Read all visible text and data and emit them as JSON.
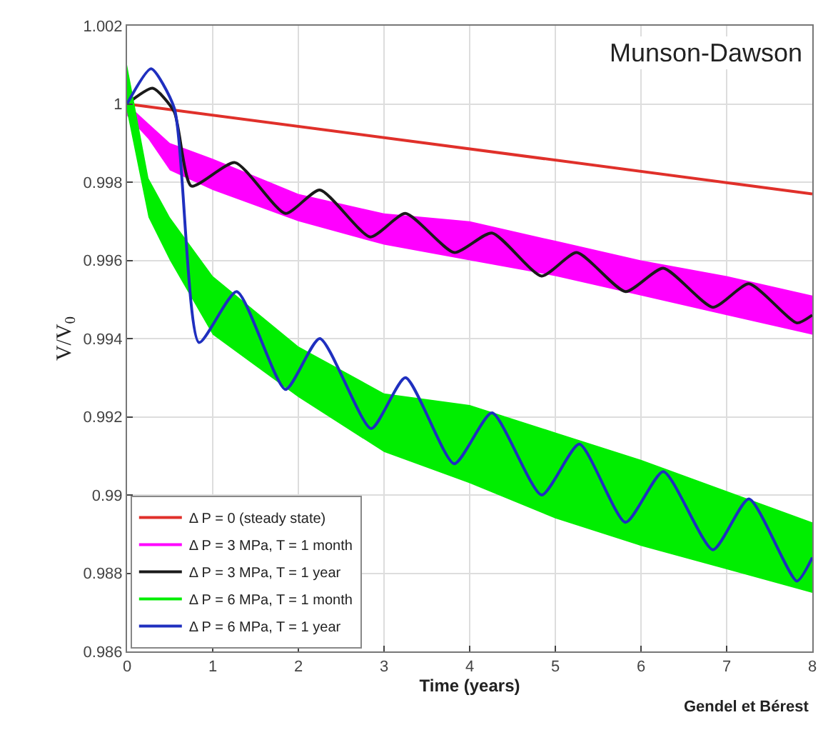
{
  "chart_data": {
    "type": "line",
    "xlabel": "Time (years)",
    "ylabel": "V/V$_{0}$",
    "xlim": [
      0,
      8
    ],
    "xticks": [
      0,
      1,
      2,
      3,
      4,
      5,
      6,
      7,
      8
    ],
    "ylim": [
      0.986,
      1.002
    ],
    "yticks": [
      0.986,
      0.988,
      0.99,
      0.992,
      0.994,
      0.996,
      0.998,
      1,
      1.002
    ],
    "grid": true,
    "legend": "bottom left",
    "marker": "none",
    "line_style": "solid",
    "annotations": [
      "Munson-Dawson",
      "Gendel et Bérest"
    ],
    "series": [
      {
        "name": "Δ P = 0 (steady state)",
        "color": "#e0302a",
        "x": [
          0,
          8
        ],
        "values": [
          1.0,
          0.9977
        ]
      },
      {
        "name": "Δ P = 3 MPa, T = 1 month",
        "color": "#ff00ff",
        "x": [
          0,
          0.25,
          0.5,
          1,
          2,
          3,
          4,
          5,
          6,
          7,
          8
        ],
        "values": [
          null,
          null,
          null,
          null,
          null,
          null,
          null,
          null,
          null,
          null,
          null
        ],
        "upper": [
          1.0,
          0.9995,
          0.999,
          0.9986,
          0.9977,
          0.9972,
          0.997,
          0.9965,
          0.996,
          0.9956,
          0.9951
        ],
        "lower": [
          0.9997,
          0.9991,
          0.9983,
          0.9978,
          0.997,
          0.9964,
          0.996,
          0.9956,
          0.9951,
          0.9946,
          0.9941
        ]
      },
      {
        "name": "Δ P = 3 MPa, T = 1 year",
        "color": "#1a1a1a",
        "x": [
          0,
          0.3,
          0.55,
          0.75,
          1.26,
          1.85,
          2.25,
          2.84,
          3.25,
          3.82,
          4.26,
          4.84,
          5.25,
          5.82,
          6.26,
          6.84,
          7.26,
          7.82,
          8
        ],
        "values": [
          1.0,
          1.0004,
          0.9998,
          0.9979,
          0.9985,
          0.9972,
          0.9978,
          0.9966,
          0.9972,
          0.9962,
          0.9967,
          0.9956,
          0.9962,
          0.9952,
          0.9958,
          0.9948,
          0.9954,
          0.9944,
          0.9946
        ]
      },
      {
        "name": "Δ P = 6 MPa, T = 1 month",
        "color": "#00ee00",
        "x": [
          0,
          0.25,
          0.5,
          1,
          2,
          3,
          4,
          5,
          6,
          7,
          8
        ],
        "values": [
          null,
          null,
          null,
          null,
          null,
          null,
          null,
          null,
          null,
          null,
          null
        ],
        "upper": [
          1.001,
          0.9981,
          0.9971,
          0.9956,
          0.9938,
          0.9926,
          0.9923,
          0.9916,
          0.9909,
          0.9901,
          0.9893
        ],
        "lower": [
          0.9998,
          0.9971,
          0.996,
          0.9941,
          0.9925,
          0.9911,
          0.9903,
          0.9894,
          0.9887,
          0.9881,
          0.9875
        ]
      },
      {
        "name": "Δ P = 6 MPa, T = 1 year",
        "color": "#1f2fbf",
        "x": [
          0,
          0.28,
          0.55,
          0.84,
          1.28,
          1.85,
          2.25,
          2.85,
          3.25,
          3.82,
          4.26,
          4.84,
          5.28,
          5.82,
          6.26,
          6.84,
          7.26,
          7.82,
          8
        ],
        "values": [
          1.0,
          1.0009,
          0.9999,
          0.9939,
          0.9952,
          0.9927,
          0.994,
          0.9917,
          0.993,
          0.9908,
          0.9921,
          0.99,
          0.9913,
          0.9893,
          0.9906,
          0.9886,
          0.9899,
          0.9878,
          0.9884
        ]
      }
    ]
  }
}
